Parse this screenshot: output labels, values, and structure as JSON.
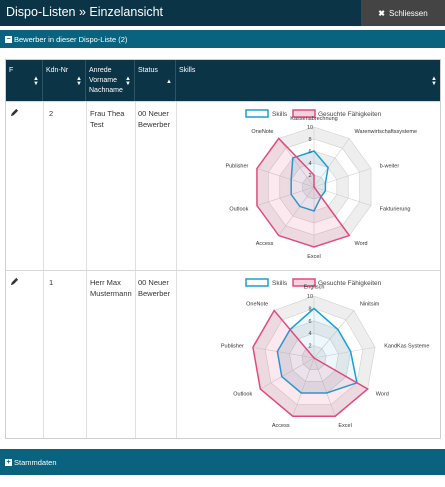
{
  "header": {
    "title": "Dispo-Listen » Einzelansicht",
    "close_label": "Schliessen"
  },
  "section_bewerber": {
    "label": "Bewerber in dieser Dispo-Liste (2)"
  },
  "columns": {
    "f": "F",
    "kdn": "Kdn-Nr",
    "name": [
      "Anrede",
      "Vorname",
      "Nachname"
    ],
    "status": "Status",
    "skills": "Skills"
  },
  "rows": [
    {
      "kdn": "2",
      "name": "Frau Thea Test",
      "status": "00 Neuer Bewerber",
      "chart": {
        "legend": [
          "Skills",
          "Gesuchte Fähigkeiten"
        ],
        "axes": [
          "Kassenabrechnung",
          "Warenwirtschaftssysteme",
          "b-weiter",
          "Fakturierung",
          "Word",
          "Excel",
          "Access",
          "Outlook",
          "Publisher",
          "OneNote"
        ],
        "ticks": [
          "10",
          "8",
          "6",
          "4",
          "2"
        ]
      }
    },
    {
      "kdn": "1",
      "name": "Herr Max Mustermann",
      "status": "00 Neuer Bewerber",
      "chart": {
        "legend": [
          "Skills",
          "Gesuchte Fähigkeiten"
        ],
        "axes": [
          "Englisch",
          "Ninitsim",
          "KandKas Systeme",
          "Word",
          "Excel",
          "Access",
          "Outlook",
          "Publisher",
          "OneNote"
        ],
        "ticks": [
          "10",
          "8",
          "6",
          "4",
          "2"
        ]
      }
    }
  ],
  "chart_data": [
    {
      "type": "radar",
      "axes": [
        "Kassenabrechnung",
        "Warenwirtschaftssysteme",
        "b-weiter",
        "Fakturierung",
        "Word",
        "Excel",
        "Access",
        "Outlook",
        "Publisher",
        "OneNote"
      ],
      "range": [
        0,
        10
      ],
      "series": [
        {
          "name": "Skills",
          "color": "#1a9fd4",
          "values": [
            6,
            4,
            2,
            2,
            2,
            4,
            4,
            4,
            4,
            6
          ]
        },
        {
          "name": "Gesuchte Fähigkeiten",
          "color": "#e24a7e",
          "values": [
            2,
            0,
            0,
            0,
            10,
            10,
            10,
            10,
            10,
            10
          ]
        }
      ]
    },
    {
      "type": "radar",
      "axes": [
        "Englisch",
        "Ninitsim",
        "KandKas Systeme",
        "Word",
        "Excel",
        "Access",
        "Outlook",
        "Publisher",
        "OneNote"
      ],
      "range": [
        0,
        10
      ],
      "series": [
        {
          "name": "Skills",
          "color": "#1a9fd4",
          "values": [
            8,
            6,
            6,
            8,
            6,
            6,
            6,
            6,
            6
          ]
        },
        {
          "name": "Gesuchte Fähigkeiten",
          "color": "#e24a7e",
          "values": [
            0,
            0,
            0,
            10,
            10,
            10,
            10,
            10,
            10
          ]
        }
      ]
    }
  ],
  "section_stammdaten": {
    "label": "Stammdaten"
  }
}
